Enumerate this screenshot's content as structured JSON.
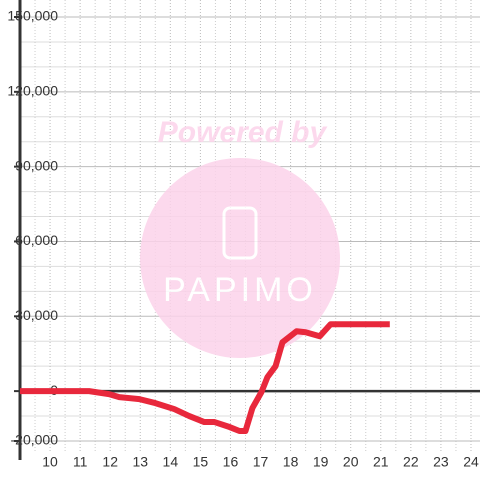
{
  "chart_data": {
    "type": "line",
    "x": [
      9,
      11.3,
      11.96,
      12.3,
      12.97,
      13.5,
      14.13,
      14.63,
      15.13,
      15.47,
      15.97,
      16.3,
      16.5,
      16.73,
      17.03,
      17.23,
      17.5,
      17.73,
      18.2,
      18.5,
      18.97,
      19.33,
      19.8,
      21.3
    ],
    "series": [
      {
        "color": "#e8283c",
        "values": [
          0,
          0,
          -1200,
          -2400,
          -3200,
          -4800,
          -7200,
          -10000,
          -12400,
          -12400,
          -14400,
          -16000,
          -16000,
          -6800,
          -400,
          5600,
          10000,
          19600,
          24000,
          23600,
          22000,
          26800,
          26800,
          26800
        ]
      }
    ],
    "xlim": [
      9,
      24.3
    ],
    "xticks": [
      10,
      11,
      12,
      13,
      14,
      15,
      16,
      17,
      18,
      19,
      20,
      21,
      22,
      23,
      24
    ],
    "x_minor_ticks": [
      9.5,
      10.5,
      11.5,
      12.5,
      13.5,
      14.5,
      15.5,
      16.5,
      17.5,
      18.5,
      19.5,
      20.5,
      21.5,
      22.5,
      23.5
    ],
    "ylim": [
      -20000,
      150000
    ],
    "yticks": [
      {
        "value": -20000,
        "label": "-20,000"
      },
      0,
      {
        "value": 30000,
        "label": "30,000"
      },
      {
        "value": 60000,
        "label": "60,000"
      },
      {
        "value": 90000,
        "label": "90,000"
      },
      {
        "value": 120000,
        "label": "120,000"
      },
      {
        "value": 150000,
        "label": "150,000"
      }
    ],
    "y_minor_ticks": [
      -10000,
      10000,
      20000,
      40000,
      50000,
      70000,
      80000,
      100000,
      110000,
      130000,
      140000
    ],
    "grid": true
  },
  "watermark": {
    "line1": "Powered by",
    "line2": "PAPIMO"
  }
}
